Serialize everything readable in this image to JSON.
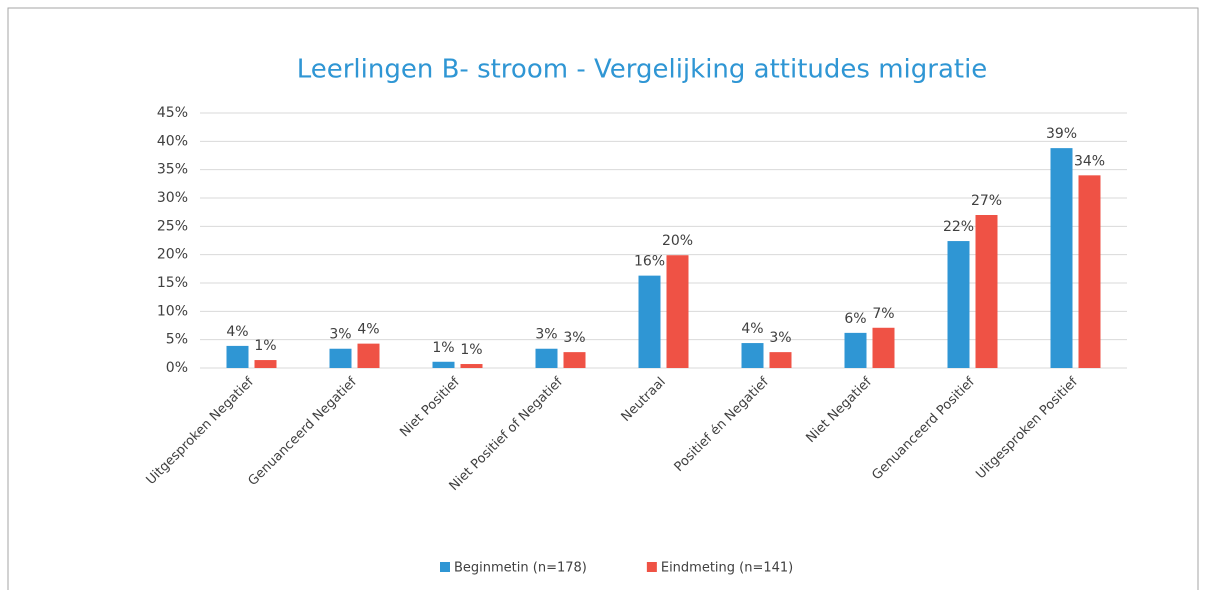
{
  "chart_data": {
    "type": "bar",
    "title": "Leerlingen B- stroom - Vergelijking attitudes migratie",
    "categories": [
      "Uitgesproken Negatief",
      "Genuanceerd Negatief",
      "Niet Positief",
      "Niet Positief of Negatief",
      "Neutraal",
      "Positief én Negatief",
      "Niet Negatief",
      "Genuanceerd Positief",
      "Uitgesproken Positief"
    ],
    "series": [
      {
        "name": "Beginmetin (n=178)",
        "color": "#2f96d4",
        "values": [
          3.9,
          3.4,
          1.1,
          3.4,
          16.3,
          4.4,
          6.2,
          22.4,
          38.8
        ],
        "value_labels": [
          "4%",
          "3%",
          "1%",
          "3%",
          "16%",
          "4%",
          "6%",
          "22%",
          "39%"
        ]
      },
      {
        "name": "Eindmeting (n=141)",
        "color": "#ef5245",
        "values": [
          1.4,
          4.3,
          0.7,
          2.8,
          19.9,
          2.8,
          7.1,
          27.0,
          34.0
        ],
        "value_labels": [
          "1%",
          "4%",
          "1%",
          "3%",
          "20%",
          "3%",
          "7%",
          "27%",
          "34%"
        ]
      }
    ],
    "ylim": [
      0,
      45
    ],
    "yticks": [
      {
        "value": 0,
        "label": "0%"
      },
      {
        "value": 5,
        "label": "5%"
      },
      {
        "value": 10,
        "label": "10%"
      },
      {
        "value": 15,
        "label": "15%"
      },
      {
        "value": 20,
        "label": "20%"
      },
      {
        "value": 25,
        "label": "25%"
      },
      {
        "value": 30,
        "label": "30%"
      },
      {
        "value": 35,
        "label": "35%"
      },
      {
        "value": 40,
        "label": "40%"
      },
      {
        "value": 45,
        "label": "45%"
      }
    ],
    "grid": true,
    "legend": "bottom"
  }
}
